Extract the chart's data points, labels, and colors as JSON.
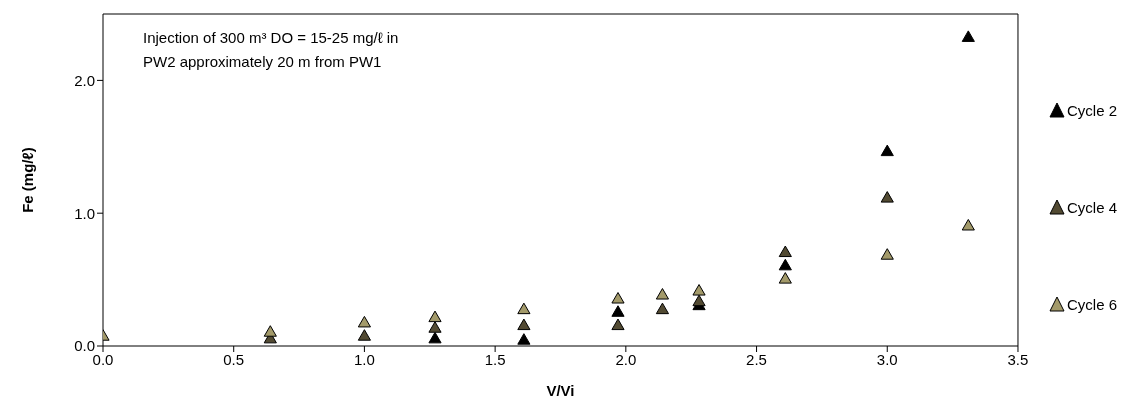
{
  "chart_data": {
    "type": "scatter",
    "xlabel": "V/Vi",
    "ylabel": "Fe (mg/ℓ)",
    "x": [
      0,
      0.64,
      1.0,
      1.27,
      1.61,
      1.97,
      2.14,
      2.28,
      2.61,
      3.0,
      3.31
    ],
    "series": [
      {
        "name": "Cycle 2",
        "color": "#000000",
        "values": [
          null,
          null,
          null,
          0.05,
          0.04,
          0.25,
          null,
          0.3,
          0.6,
          1.46,
          2.32
        ]
      },
      {
        "name": "Cycle 4",
        "color": "#524a32",
        "values": [
          null,
          0.05,
          0.07,
          0.13,
          0.15,
          0.15,
          0.27,
          0.33,
          0.7,
          1.11,
          null
        ]
      },
      {
        "name": "Cycle 6",
        "color": "#a39a6a",
        "values": [
          0.07,
          0.1,
          0.17,
          0.21,
          0.27,
          0.35,
          0.38,
          0.41,
          0.5,
          0.68,
          0.9
        ]
      }
    ],
    "xlim": [
      0,
      3.5
    ],
    "xticks": [
      {
        "value": 0,
        "label": "0.0"
      },
      {
        "value": 0.5,
        "label": "0.5"
      },
      {
        "value": 1,
        "label": "1.0"
      },
      {
        "value": 1.5,
        "label": "1.5"
      },
      {
        "value": 2,
        "label": "2.0"
      },
      {
        "value": 2.5,
        "label": "2.5"
      },
      {
        "value": 3,
        "label": "3.0"
      },
      {
        "value": 3.5,
        "label": "3.5"
      }
    ],
    "ylim": [
      0,
      2.5
    ],
    "yticks": [
      {
        "value": 0,
        "label": "0.0"
      },
      {
        "value": 1,
        "label": "1.0"
      },
      {
        "value": 2,
        "label": "2.0"
      }
    ],
    "annotations": [
      "Injection of 300 m³ DO = 15-25 mg/ℓ in\nPW2 approximately 20 m from PW1"
    ],
    "marker": "triangle",
    "legend": "right",
    "grid": false
  }
}
